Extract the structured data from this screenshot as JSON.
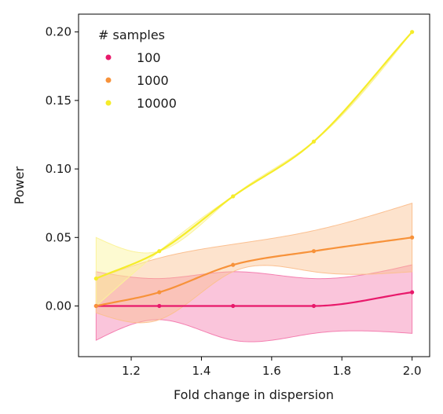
{
  "chart_data": {
    "type": "line",
    "xlabel": "Fold change in dispersion",
    "ylabel": "Power",
    "xlim": [
      1.05,
      2.05
    ],
    "ylim": [
      -0.037,
      0.213
    ],
    "xticks": [
      1.2,
      1.4,
      1.6,
      1.8,
      2.0
    ],
    "xtick_labels": [
      "1.2",
      "1.4",
      "1.6",
      "1.8",
      "2.0"
    ],
    "yticks": [
      0.0,
      0.05,
      0.1,
      0.15,
      0.2
    ],
    "ytick_labels": [
      "0.00",
      "0.05",
      "0.10",
      "0.15",
      "0.20"
    ],
    "grid": false,
    "legend": {
      "title": "# samples",
      "placement": "top-left"
    },
    "x": [
      1.1,
      1.28,
      1.49,
      1.72,
      2.0
    ],
    "series": [
      {
        "name": "100",
        "color": "#e8196b",
        "band_color": "#f47fb0",
        "values": [
          0.0,
          0.0,
          0.0,
          0.0,
          0.01
        ],
        "lower": [
          -0.025,
          -0.01,
          -0.025,
          -0.02,
          -0.02
        ],
        "upper": [
          0.025,
          0.02,
          0.025,
          0.02,
          0.03
        ]
      },
      {
        "name": "1000",
        "color": "#f7923a",
        "band_color": "#fbc091",
        "values": [
          0.0,
          0.01,
          0.03,
          0.04,
          0.05
        ],
        "lower": [
          -0.005,
          -0.01,
          0.025,
          0.025,
          0.025
        ],
        "upper": [
          0.02,
          0.035,
          0.045,
          0.055,
          0.075
        ]
      },
      {
        "name": "10000",
        "color": "#f5ec2a",
        "band_color": "#fbf39a",
        "values": [
          0.02,
          0.04,
          0.08,
          0.12,
          0.2
        ],
        "lower": [
          0.0,
          0.04,
          0.08,
          0.12,
          0.2
        ],
        "upper": [
          0.05,
          0.04,
          0.08,
          0.12,
          0.2
        ]
      }
    ]
  }
}
